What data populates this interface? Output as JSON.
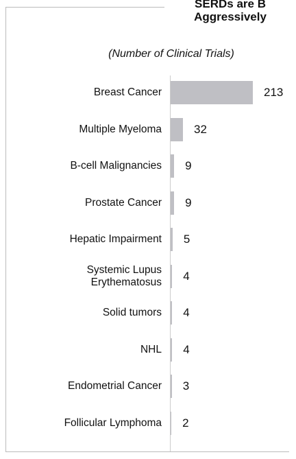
{
  "chart_data": {
    "type": "bar",
    "orientation": "horizontal",
    "title": [
      "SERDs are B",
      "Aggressively"
    ],
    "subtitle": "(Number of Clinical Trials)",
    "categories": [
      "Breast Cancer",
      "Multiple Myeloma",
      "B-cell Malignancies",
      "Prostate Cancer",
      "Hepatic Impairment",
      "Systemic Lupus Erythematosus",
      "Solid tumors",
      "NHL",
      "Endometrial Cancer",
      "Follicular Lymphoma"
    ],
    "values": [
      213,
      32,
      9,
      9,
      5,
      4,
      4,
      4,
      3,
      2
    ],
    "color": "#bfbfc4"
  }
}
